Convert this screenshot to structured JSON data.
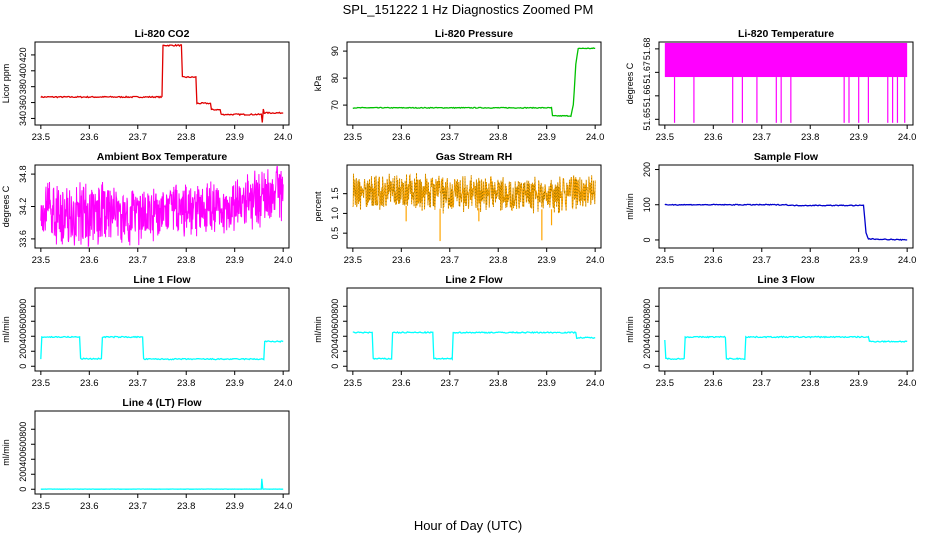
{
  "figure": {
    "title": "SPL_151222  1 Hz Diagnostics Zoomed PM",
    "xlabel": "Hour of Day (UTC)"
  },
  "chart_data": [
    {
      "type": "line",
      "title": "Li-820 CO2",
      "ylabel": "Licor ppm",
      "xlabel": "",
      "xlim": [
        23.49,
        24.01
      ],
      "ylim": [
        333,
        435
      ],
      "xticks": [
        "23.5",
        "23.6",
        "23.7",
        "23.8",
        "23.9",
        "24.0"
      ],
      "yticks": [
        340,
        360,
        380,
        400,
        420
      ],
      "series": [
        {
          "color": "#e00000",
          "noise": 0.8,
          "points": [
            [
              23.5,
              367
            ],
            [
              23.75,
              367
            ],
            [
              23.752,
              432
            ],
            [
              23.79,
              432
            ],
            [
              23.792,
              392
            ],
            [
              23.82,
              392
            ],
            [
              23.822,
              359
            ],
            [
              23.85,
              359
            ],
            [
              23.852,
              351
            ],
            [
              23.87,
              351
            ],
            [
              23.872,
              345
            ],
            [
              23.955,
              345
            ],
            [
              23.957,
              335
            ],
            [
              23.959,
              352
            ],
            [
              23.961,
              347
            ],
            [
              24.0,
              347
            ]
          ]
        }
      ]
    },
    {
      "type": "line",
      "title": "Li-820 Pressure",
      "ylabel": "kPa",
      "xlabel": "",
      "xlim": [
        23.49,
        24.01
      ],
      "ylim": [
        63,
        93
      ],
      "xticks": [
        "23.5",
        "23.6",
        "23.7",
        "23.8",
        "23.9",
        "24.0"
      ],
      "yticks": [
        70,
        80,
        90
      ],
      "series": [
        {
          "color": "#00c000",
          "noise": 0.15,
          "points": [
            [
              23.5,
              69
            ],
            [
              23.91,
              69
            ],
            [
              23.912,
              66
            ],
            [
              23.95,
              66
            ],
            [
              23.955,
              70
            ],
            [
              23.96,
              85
            ],
            [
              23.965,
              91
            ],
            [
              24.0,
              91
            ]
          ]
        }
      ]
    },
    {
      "type": "line",
      "title": "Li-820 Temperature",
      "ylabel": "degrees C",
      "xlabel": "",
      "xlim": [
        23.49,
        24.01
      ],
      "ylim": [
        51.648,
        51.6825
      ],
      "xticks": [
        "23.5",
        "23.6",
        "23.7",
        "23.8",
        "23.9",
        "24.0"
      ],
      "yticks": [
        "51.65",
        "51.66",
        "51.67",
        "51.68"
      ],
      "series": [
        {
          "color": "#ff00ff",
          "band": [
            51.668,
            51.6825
          ],
          "spike_to": 51.6485,
          "spikes": [
            23.52,
            23.56,
            23.64,
            23.66,
            23.69,
            23.73,
            23.74,
            23.76,
            23.87,
            23.88,
            23.9,
            23.92,
            23.96,
            23.97,
            23.98,
            23.995
          ]
        }
      ]
    },
    {
      "type": "line",
      "title": "Ambient Box Temperature",
      "ylabel": "degrees C",
      "xlabel": "",
      "xlim": [
        23.49,
        24.01
      ],
      "ylim": [
        33.45,
        34.95
      ],
      "xticks": [
        "23.5",
        "23.6",
        "23.7",
        "23.8",
        "23.9",
        "24.0"
      ],
      "yticks": [
        "33.6",
        "34.2",
        "34.8"
      ],
      "series": [
        {
          "color": "#ff00ff",
          "oscillate": true,
          "points": [
            [
              23.5,
              33.65,
              34.55
            ],
            [
              23.6,
              33.6,
              34.6
            ],
            [
              23.7,
              33.6,
              34.4
            ],
            [
              23.8,
              33.75,
              34.55
            ],
            [
              23.9,
              33.8,
              34.6
            ],
            [
              23.96,
              33.95,
              34.85
            ],
            [
              24.0,
              34.0,
              34.9
            ]
          ]
        }
      ]
    },
    {
      "type": "line",
      "title": "Gas Stream RH",
      "ylabel": "percent",
      "xlabel": "",
      "xlim": [
        23.49,
        24.01
      ],
      "ylim": [
        0.15,
        2.2
      ],
      "xticks": [
        "23.5",
        "23.6",
        "23.7",
        "23.8",
        "23.9",
        "24.0"
      ],
      "yticks": [
        "0.5",
        "1.0",
        "1.5"
      ],
      "series": [
        {
          "color": "#ffa500",
          "oscillate": true,
          "overlay": "#505000",
          "points": [
            [
              23.5,
              1.15,
              1.95
            ],
            [
              23.6,
              1.2,
              1.95
            ],
            [
              23.7,
              1.1,
              1.9
            ],
            [
              23.8,
              1.15,
              1.85
            ],
            [
              23.9,
              1.1,
              1.85
            ],
            [
              24.0,
              1.15,
              1.9
            ]
          ],
          "dips": [
            [
              23.68,
              0.3
            ],
            [
              23.89,
              0.32
            ],
            [
              23.76,
              0.8
            ],
            [
              23.91,
              0.7
            ],
            [
              23.61,
              0.8
            ]
          ]
        }
      ]
    },
    {
      "type": "line",
      "title": "Sample Flow",
      "ylabel": "ml/min",
      "xlabel": "",
      "xlim": [
        23.49,
        24.01
      ],
      "ylim": [
        -20,
        210
      ],
      "xticks": [
        "23.5",
        "23.6",
        "23.7",
        "23.8",
        "23.9",
        "24.0"
      ],
      "yticks": [
        0,
        100,
        200
      ],
      "series": [
        {
          "color": "#0000cc",
          "noise": 1.2,
          "points": [
            [
              23.5,
              100
            ],
            [
              23.75,
              100
            ],
            [
              23.76,
              98
            ],
            [
              23.91,
              98
            ],
            [
              23.915,
              20
            ],
            [
              23.92,
              3
            ],
            [
              24.0,
              0
            ]
          ]
        }
      ]
    },
    {
      "type": "line",
      "title": "Line 1 Flow",
      "ylabel": "ml/min",
      "xlabel": "",
      "xlim": [
        23.49,
        24.01
      ],
      "ylim": [
        -50,
        1030
      ],
      "xticks": [
        "23.5",
        "23.6",
        "23.7",
        "23.8",
        "23.9",
        "24.0"
      ],
      "yticks": [
        0,
        200,
        400,
        600,
        800
      ],
      "series": [
        {
          "color": "#00ffff",
          "noise": 8,
          "points": [
            [
              23.5,
              100
            ],
            [
              23.502,
              390
            ],
            [
              23.58,
              390
            ],
            [
              23.582,
              100
            ],
            [
              23.625,
              100
            ],
            [
              23.627,
              390
            ],
            [
              23.71,
              390
            ],
            [
              23.712,
              95
            ],
            [
              23.96,
              95
            ],
            [
              23.962,
              330
            ],
            [
              24.0,
              330
            ]
          ]
        }
      ]
    },
    {
      "type": "line",
      "title": "Line 2 Flow",
      "ylabel": "ml/min",
      "xlabel": "",
      "xlim": [
        23.49,
        24.01
      ],
      "ylim": [
        -50,
        1030
      ],
      "xticks": [
        "23.5",
        "23.6",
        "23.7",
        "23.8",
        "23.9",
        "24.0"
      ],
      "yticks": [
        0,
        200,
        400,
        600,
        800
      ],
      "series": [
        {
          "color": "#00ffff",
          "noise": 8,
          "points": [
            [
              23.5,
              450
            ],
            [
              23.54,
              450
            ],
            [
              23.542,
              100
            ],
            [
              23.58,
              100
            ],
            [
              23.582,
              450
            ],
            [
              23.665,
              450
            ],
            [
              23.667,
              100
            ],
            [
              23.705,
              100
            ],
            [
              23.707,
              450
            ],
            [
              23.96,
              450
            ],
            [
              23.962,
              380
            ],
            [
              24.0,
              380
            ]
          ]
        }
      ]
    },
    {
      "type": "line",
      "title": "Line 3 Flow",
      "ylabel": "ml/min",
      "xlabel": "",
      "xlim": [
        23.49,
        24.01
      ],
      "ylim": [
        -50,
        1030
      ],
      "xticks": [
        "23.5",
        "23.6",
        "23.7",
        "23.8",
        "23.9",
        "24.0"
      ],
      "yticks": [
        0,
        200,
        400,
        600,
        800
      ],
      "series": [
        {
          "color": "#00ffff",
          "noise": 8,
          "points": [
            [
              23.5,
              350
            ],
            [
              23.502,
              100
            ],
            [
              23.54,
              100
            ],
            [
              23.542,
              390
            ],
            [
              23.625,
              390
            ],
            [
              23.627,
              100
            ],
            [
              23.665,
              100
            ],
            [
              23.667,
              390
            ],
            [
              23.92,
              390
            ],
            [
              23.922,
              330
            ],
            [
              24.0,
              330
            ]
          ]
        }
      ]
    },
    {
      "type": "line",
      "title": "Line 4 (LT) Flow",
      "ylabel": "ml/min",
      "xlabel": "",
      "xlim": [
        23.49,
        24.01
      ],
      "ylim": [
        -50,
        1030
      ],
      "xticks": [
        "23.5",
        "23.6",
        "23.7",
        "23.8",
        "23.9",
        "24.0"
      ],
      "yticks": [
        0,
        200,
        400,
        600,
        800
      ],
      "series": [
        {
          "color": "#00ffff",
          "noise": 2,
          "points": [
            [
              23.5,
              2
            ],
            [
              23.955,
              2
            ],
            [
              23.956,
              140
            ],
            [
              23.958,
              2
            ],
            [
              24.0,
              2
            ]
          ]
        }
      ]
    }
  ]
}
